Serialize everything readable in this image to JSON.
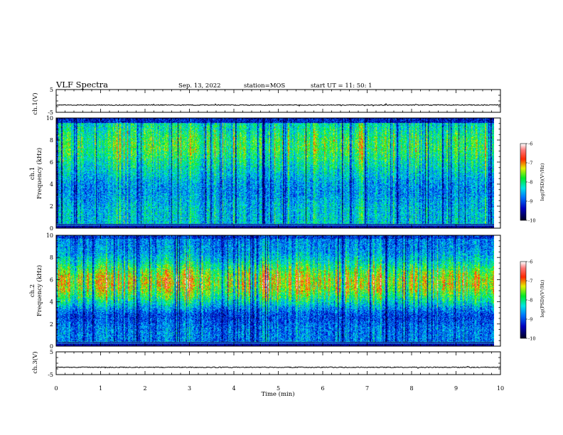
{
  "header": {
    "title": "VLF Spectra",
    "date": "Sep. 13, 2022",
    "station": "station=MOS",
    "start": "start UT =  11: 50: 1"
  },
  "chart_data": [
    {
      "type": "line",
      "panel": "ch1-waveform",
      "ylabel": "ch.1(V)",
      "ylim": [
        -5,
        5
      ],
      "yticks": [
        "5",
        "-5"
      ],
      "x_range_min": [
        0,
        10
      ],
      "series": [
        {
          "mean": -1.8
        }
      ]
    },
    {
      "type": "heatmap",
      "panel": "ch1-spectrogram",
      "ylabel": "ch.1",
      "ylabel2": "Frequency (kHz)",
      "ylim": [
        0,
        10
      ],
      "yticks": [
        "0",
        "2",
        "4",
        "6",
        "8",
        "10"
      ],
      "x_range_min": [
        0,
        9.85
      ],
      "colorbar": {
        "label": "log(PSD)(V²/Hz)",
        "range": [
          -10,
          -6
        ],
        "ticks": [
          "-6",
          "-7",
          "-8",
          "-9",
          "-10"
        ],
        "colors": [
          "#000033",
          "#0000ff",
          "#00ffff",
          "#00ff00",
          "#ffff00",
          "#ff0000",
          "#ffffff"
        ]
      }
    },
    {
      "type": "heatmap",
      "panel": "ch2-spectrogram",
      "ylabel": "ch.2",
      "ylabel2": "Frequency (kHz)",
      "ylim": [
        0,
        10
      ],
      "yticks": [
        "0",
        "2",
        "4",
        "6",
        "8",
        "10"
      ],
      "x_range_min": [
        0,
        9.85
      ],
      "colorbar": {
        "label": "log(PSD)(V²/Hz)",
        "range": [
          -10,
          -6
        ],
        "ticks": [
          "-6",
          "-7",
          "-8",
          "-9",
          "-10"
        ],
        "colors": [
          "#000033",
          "#0000ff",
          "#00ffff",
          "#00ff00",
          "#ffff00",
          "#ff0000",
          "#ffffff"
        ]
      }
    },
    {
      "type": "line",
      "panel": "ch3-waveform",
      "ylabel": "ch.3(V)",
      "ylim": [
        -5,
        5
      ],
      "yticks": [
        "5",
        "-5"
      ],
      "x_range_min": [
        0,
        10
      ],
      "series": [
        {
          "mean": -1.8
        }
      ]
    }
  ],
  "xaxis": {
    "label": "Time (min)",
    "ticks": [
      "0",
      "1",
      "2",
      "3",
      "4",
      "5",
      "6",
      "7",
      "8",
      "9",
      "10"
    ]
  }
}
